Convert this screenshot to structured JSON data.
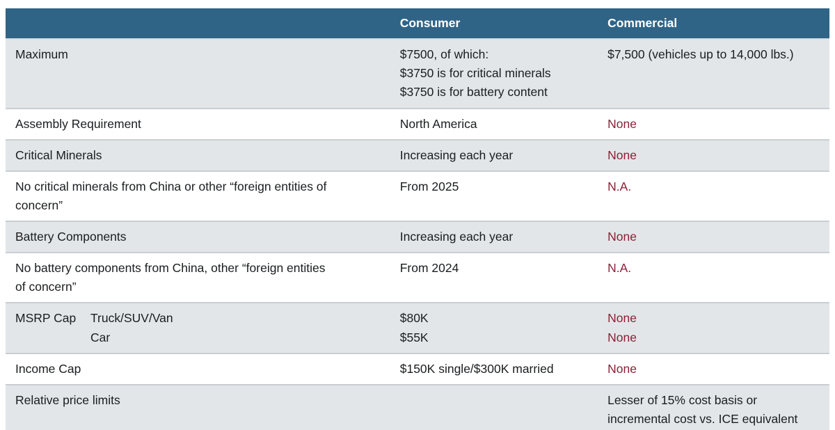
{
  "colors": {
    "header_bg": "#306486",
    "header_text": "#ffffff",
    "row_alt_bg": "#e3e6e8",
    "row_bg": "#ffffff",
    "divider": "#c9ced3",
    "text": "#1b1d1f",
    "negative_value_red": "#8e1f36"
  },
  "table": {
    "header": {
      "col1": "",
      "col2": "Consumer",
      "col3": "Commercial"
    },
    "rows": [
      {
        "label_lines": [
          "Maximum"
        ],
        "consumer_lines": [
          "$7500, of which:",
          "$3750 is for critical minerals",
          "$3750 is for battery content"
        ],
        "commercial_lines": [
          "$7,500 (vehicles up to 14,000 lbs.)"
        ]
      },
      {
        "label_lines": [
          "Assembly Requirement"
        ],
        "consumer_lines": [
          "North America"
        ],
        "commercial_lines": [
          "None"
        ]
      },
      {
        "label_lines": [
          "Critical Minerals"
        ],
        "consumer_lines": [
          "Increasing each year"
        ],
        "commercial_lines": [
          "None"
        ]
      },
      {
        "label_lines": [
          "No critical minerals from China or other “foreign entities of",
          "concern”"
        ],
        "consumer_lines": [
          "From 2025"
        ],
        "commercial_lines": [
          "N.A."
        ]
      },
      {
        "label_lines": [
          "Battery Components"
        ],
        "consumer_lines": [
          "Increasing each year"
        ],
        "commercial_lines": [
          "None"
        ]
      },
      {
        "label_lines": [
          "No battery components from China, other “foreign entities",
          "of concern”"
        ],
        "consumer_lines": [
          "From 2024"
        ],
        "commercial_lines": [
          "N.A."
        ]
      },
      {
        "label": "MSRP Cap",
        "sub_labels": [
          "Truck/SUV/Van",
          "Car"
        ],
        "consumer_lines": [
          "$80K",
          "$55K"
        ],
        "commercial_lines": [
          "None",
          "None"
        ]
      },
      {
        "label_lines": [
          "Income Cap"
        ],
        "consumer_lines": [
          "$150K single/$300K married"
        ],
        "commercial_lines": [
          "None"
        ]
      },
      {
        "label_lines": [
          "Relative price limits"
        ],
        "consumer_lines": [],
        "commercial_lines": [
          "Lesser of 15% cost basis or",
          "incremental cost vs. ICE equivalent"
        ]
      }
    ]
  }
}
